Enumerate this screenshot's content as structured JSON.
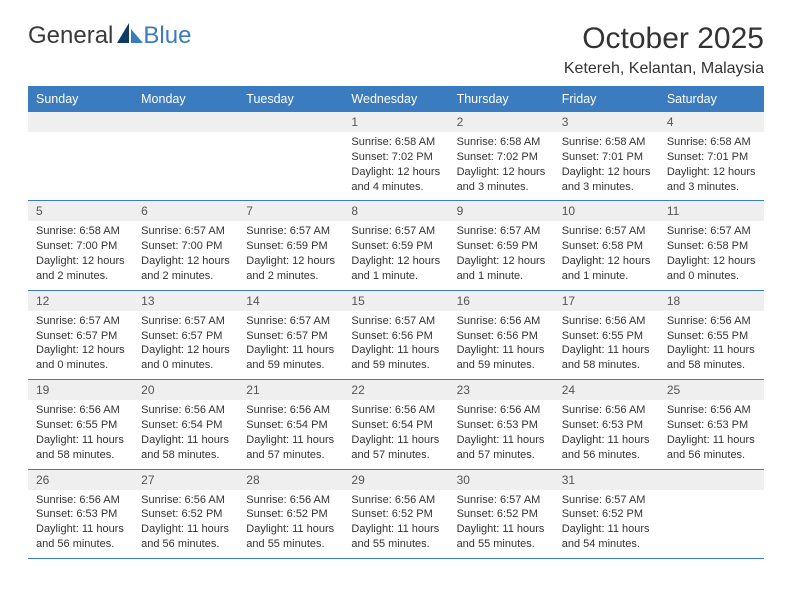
{
  "logo": {
    "text_general": "General",
    "text_blue": "Blue"
  },
  "title": "October 2025",
  "location": "Ketereh, Kelantan, Malaysia",
  "colors": {
    "brand_blue": "#3b7bbf",
    "day_header_text": "#ffffff",
    "daynum_bg": "#efefef",
    "text": "#333333",
    "page_bg": "#ffffff"
  },
  "typography": {
    "title_fontsize": 30,
    "location_fontsize": 16,
    "header_fontsize": 12.5,
    "detail_fontsize": 11
  },
  "day_names": [
    "Sunday",
    "Monday",
    "Tuesday",
    "Wednesday",
    "Thursday",
    "Friday",
    "Saturday"
  ],
  "weeks": [
    [
      {
        "daynum": "",
        "sunrise": "",
        "sunset": "",
        "daylight": ""
      },
      {
        "daynum": "",
        "sunrise": "",
        "sunset": "",
        "daylight": ""
      },
      {
        "daynum": "",
        "sunrise": "",
        "sunset": "",
        "daylight": ""
      },
      {
        "daynum": "1",
        "sunrise": "Sunrise: 6:58 AM",
        "sunset": "Sunset: 7:02 PM",
        "daylight": "Daylight: 12 hours and 4 minutes."
      },
      {
        "daynum": "2",
        "sunrise": "Sunrise: 6:58 AM",
        "sunset": "Sunset: 7:02 PM",
        "daylight": "Daylight: 12 hours and 3 minutes."
      },
      {
        "daynum": "3",
        "sunrise": "Sunrise: 6:58 AM",
        "sunset": "Sunset: 7:01 PM",
        "daylight": "Daylight: 12 hours and 3 minutes."
      },
      {
        "daynum": "4",
        "sunrise": "Sunrise: 6:58 AM",
        "sunset": "Sunset: 7:01 PM",
        "daylight": "Daylight: 12 hours and 3 minutes."
      }
    ],
    [
      {
        "daynum": "5",
        "sunrise": "Sunrise: 6:58 AM",
        "sunset": "Sunset: 7:00 PM",
        "daylight": "Daylight: 12 hours and 2 minutes."
      },
      {
        "daynum": "6",
        "sunrise": "Sunrise: 6:57 AM",
        "sunset": "Sunset: 7:00 PM",
        "daylight": "Daylight: 12 hours and 2 minutes."
      },
      {
        "daynum": "7",
        "sunrise": "Sunrise: 6:57 AM",
        "sunset": "Sunset: 6:59 PM",
        "daylight": "Daylight: 12 hours and 2 minutes."
      },
      {
        "daynum": "8",
        "sunrise": "Sunrise: 6:57 AM",
        "sunset": "Sunset: 6:59 PM",
        "daylight": "Daylight: 12 hours and 1 minute."
      },
      {
        "daynum": "9",
        "sunrise": "Sunrise: 6:57 AM",
        "sunset": "Sunset: 6:59 PM",
        "daylight": "Daylight: 12 hours and 1 minute."
      },
      {
        "daynum": "10",
        "sunrise": "Sunrise: 6:57 AM",
        "sunset": "Sunset: 6:58 PM",
        "daylight": "Daylight: 12 hours and 1 minute."
      },
      {
        "daynum": "11",
        "sunrise": "Sunrise: 6:57 AM",
        "sunset": "Sunset: 6:58 PM",
        "daylight": "Daylight: 12 hours and 0 minutes."
      }
    ],
    [
      {
        "daynum": "12",
        "sunrise": "Sunrise: 6:57 AM",
        "sunset": "Sunset: 6:57 PM",
        "daylight": "Daylight: 12 hours and 0 minutes."
      },
      {
        "daynum": "13",
        "sunrise": "Sunrise: 6:57 AM",
        "sunset": "Sunset: 6:57 PM",
        "daylight": "Daylight: 12 hours and 0 minutes."
      },
      {
        "daynum": "14",
        "sunrise": "Sunrise: 6:57 AM",
        "sunset": "Sunset: 6:57 PM",
        "daylight": "Daylight: 11 hours and 59 minutes."
      },
      {
        "daynum": "15",
        "sunrise": "Sunrise: 6:57 AM",
        "sunset": "Sunset: 6:56 PM",
        "daylight": "Daylight: 11 hours and 59 minutes."
      },
      {
        "daynum": "16",
        "sunrise": "Sunrise: 6:56 AM",
        "sunset": "Sunset: 6:56 PM",
        "daylight": "Daylight: 11 hours and 59 minutes."
      },
      {
        "daynum": "17",
        "sunrise": "Sunrise: 6:56 AM",
        "sunset": "Sunset: 6:55 PM",
        "daylight": "Daylight: 11 hours and 58 minutes."
      },
      {
        "daynum": "18",
        "sunrise": "Sunrise: 6:56 AM",
        "sunset": "Sunset: 6:55 PM",
        "daylight": "Daylight: 11 hours and 58 minutes."
      }
    ],
    [
      {
        "daynum": "19",
        "sunrise": "Sunrise: 6:56 AM",
        "sunset": "Sunset: 6:55 PM",
        "daylight": "Daylight: 11 hours and 58 minutes."
      },
      {
        "daynum": "20",
        "sunrise": "Sunrise: 6:56 AM",
        "sunset": "Sunset: 6:54 PM",
        "daylight": "Daylight: 11 hours and 58 minutes."
      },
      {
        "daynum": "21",
        "sunrise": "Sunrise: 6:56 AM",
        "sunset": "Sunset: 6:54 PM",
        "daylight": "Daylight: 11 hours and 57 minutes."
      },
      {
        "daynum": "22",
        "sunrise": "Sunrise: 6:56 AM",
        "sunset": "Sunset: 6:54 PM",
        "daylight": "Daylight: 11 hours and 57 minutes."
      },
      {
        "daynum": "23",
        "sunrise": "Sunrise: 6:56 AM",
        "sunset": "Sunset: 6:53 PM",
        "daylight": "Daylight: 11 hours and 57 minutes."
      },
      {
        "daynum": "24",
        "sunrise": "Sunrise: 6:56 AM",
        "sunset": "Sunset: 6:53 PM",
        "daylight": "Daylight: 11 hours and 56 minutes."
      },
      {
        "daynum": "25",
        "sunrise": "Sunrise: 6:56 AM",
        "sunset": "Sunset: 6:53 PM",
        "daylight": "Daylight: 11 hours and 56 minutes."
      }
    ],
    [
      {
        "daynum": "26",
        "sunrise": "Sunrise: 6:56 AM",
        "sunset": "Sunset: 6:53 PM",
        "daylight": "Daylight: 11 hours and 56 minutes."
      },
      {
        "daynum": "27",
        "sunrise": "Sunrise: 6:56 AM",
        "sunset": "Sunset: 6:52 PM",
        "daylight": "Daylight: 11 hours and 56 minutes."
      },
      {
        "daynum": "28",
        "sunrise": "Sunrise: 6:56 AM",
        "sunset": "Sunset: 6:52 PM",
        "daylight": "Daylight: 11 hours and 55 minutes."
      },
      {
        "daynum": "29",
        "sunrise": "Sunrise: 6:56 AM",
        "sunset": "Sunset: 6:52 PM",
        "daylight": "Daylight: 11 hours and 55 minutes."
      },
      {
        "daynum": "30",
        "sunrise": "Sunrise: 6:57 AM",
        "sunset": "Sunset: 6:52 PM",
        "daylight": "Daylight: 11 hours and 55 minutes."
      },
      {
        "daynum": "31",
        "sunrise": "Sunrise: 6:57 AM",
        "sunset": "Sunset: 6:52 PM",
        "daylight": "Daylight: 11 hours and 54 minutes."
      },
      {
        "daynum": "",
        "sunrise": "",
        "sunset": "",
        "daylight": ""
      }
    ]
  ]
}
